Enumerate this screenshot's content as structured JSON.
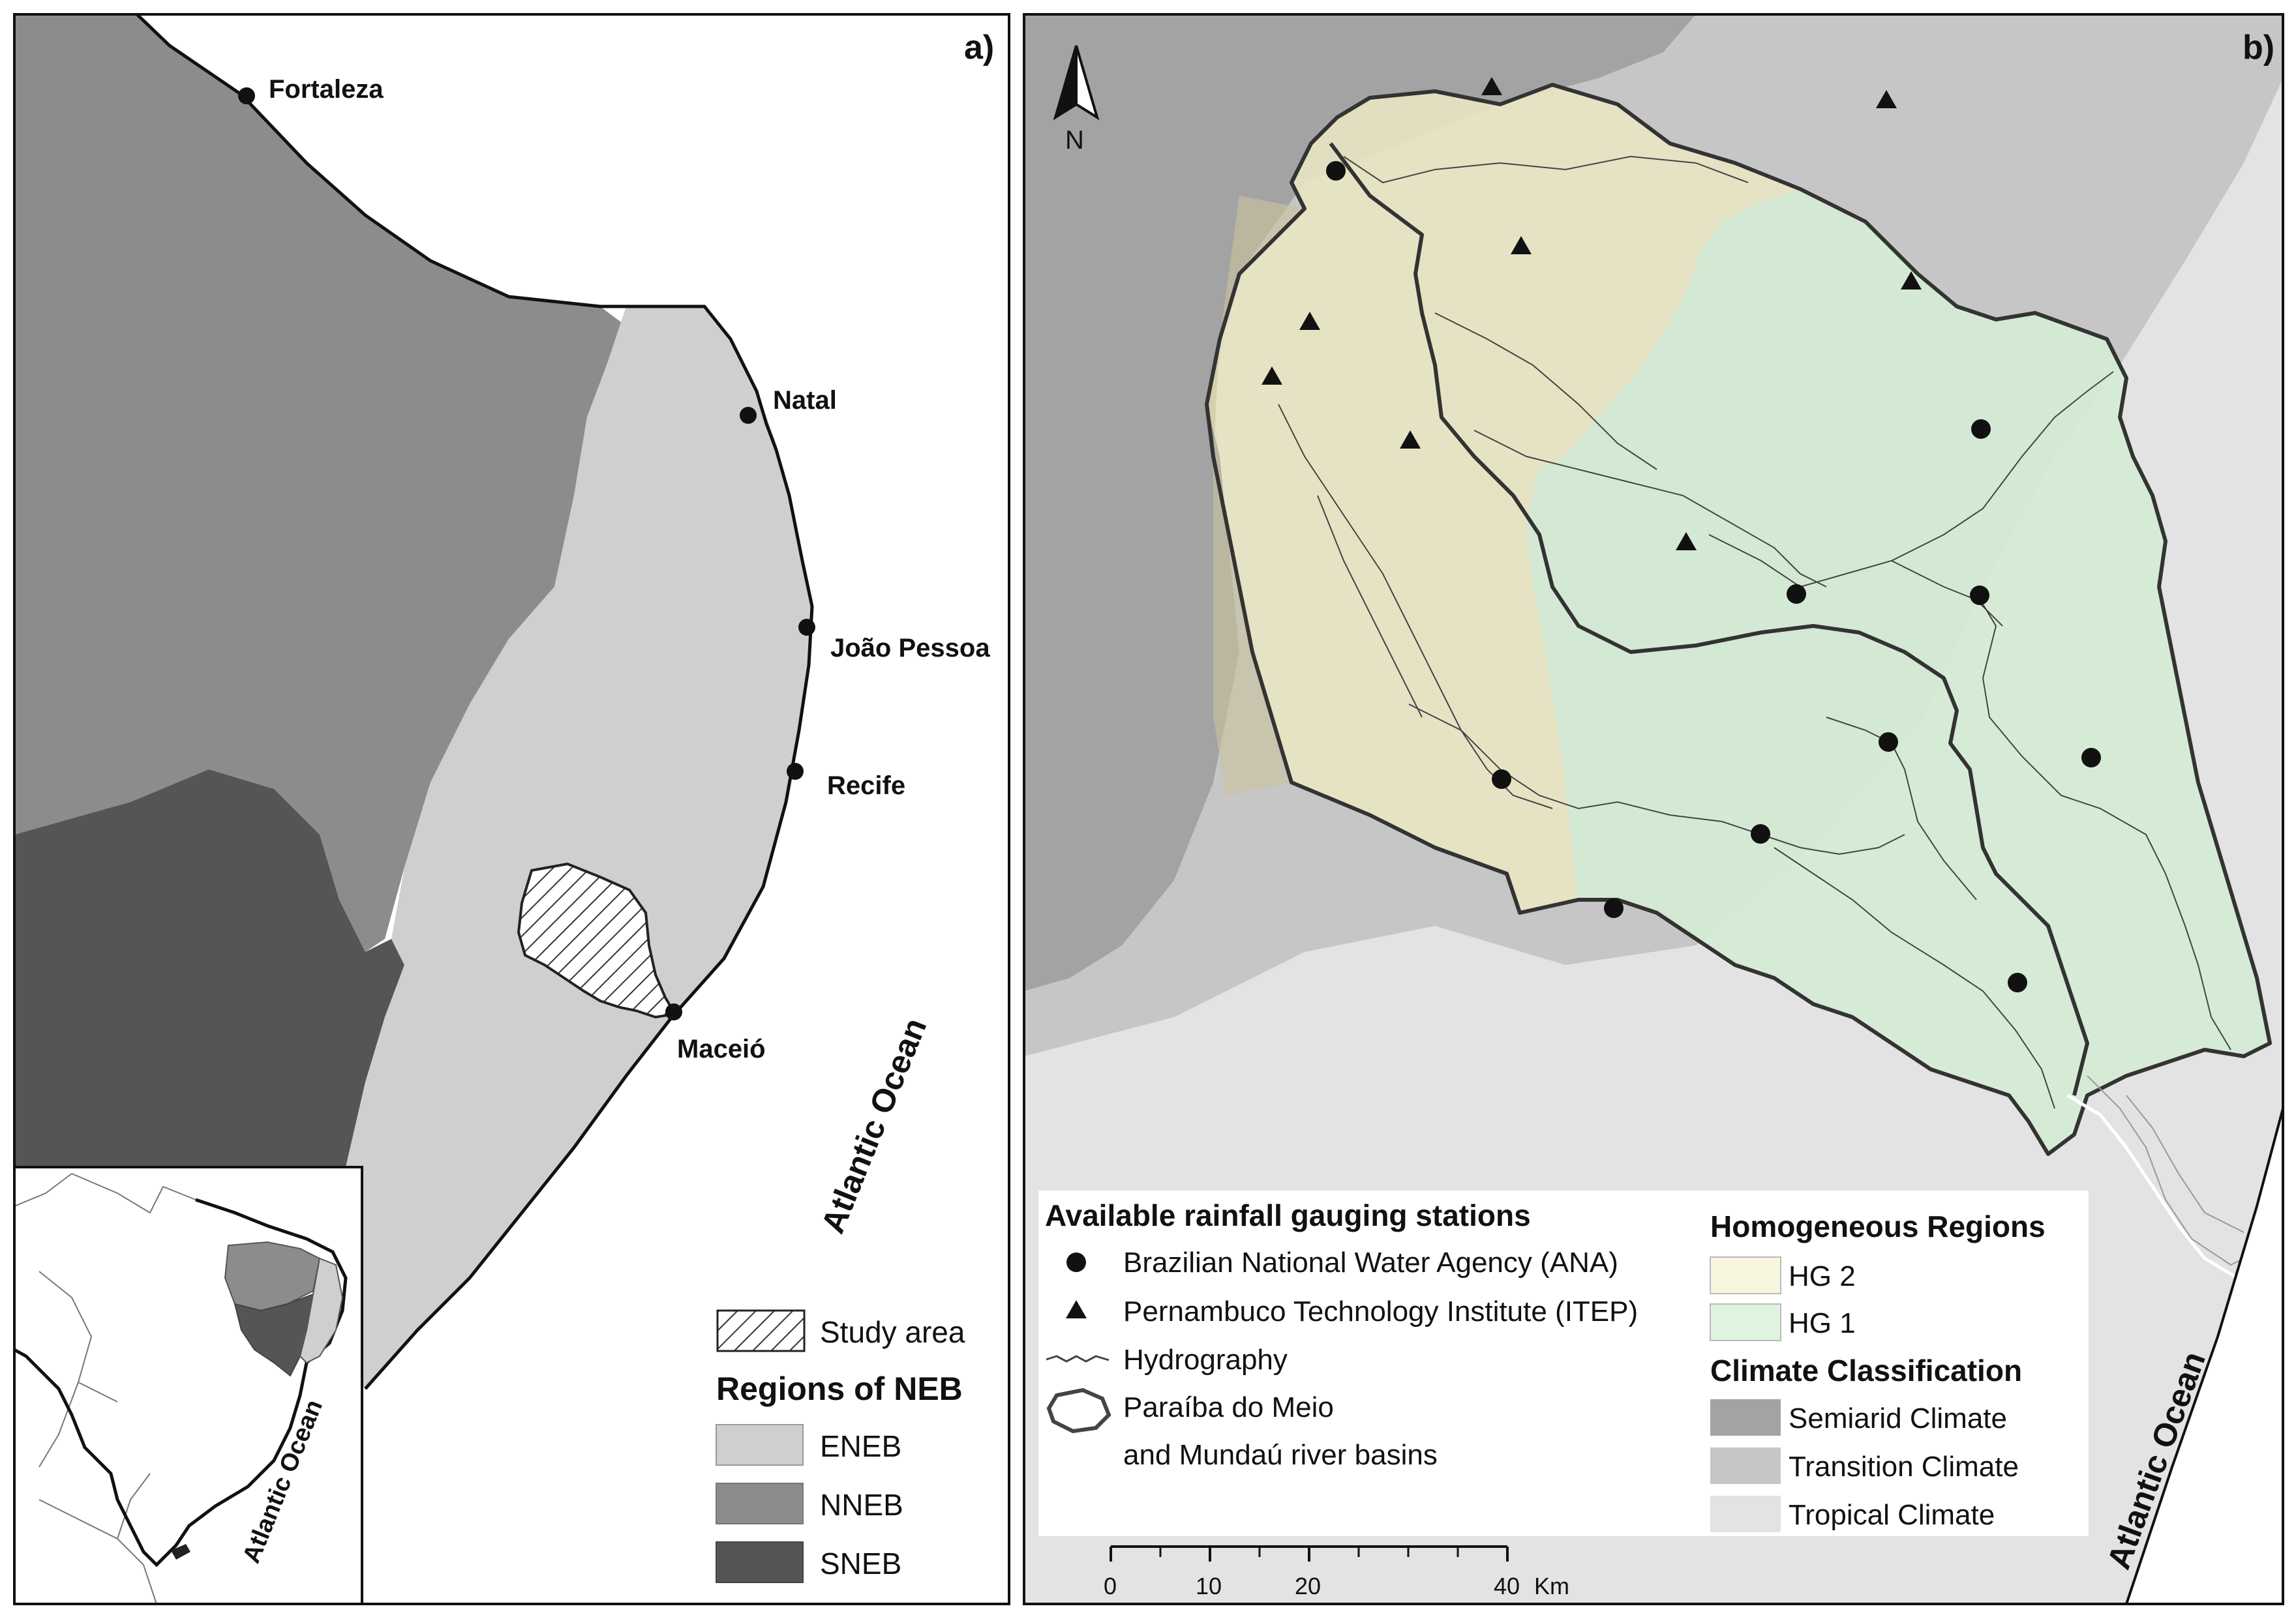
{
  "panel_a": {
    "label": "a)",
    "cities": [
      "Fortaleza",
      "Natal",
      "João Pessoa",
      "Recife",
      "Maceió"
    ],
    "ocean_label": "Atlantic Ocean",
    "inset_ocean_label": "Atlantic Ocean",
    "legend": {
      "study_area": "Study area",
      "regions_title": "Regions of NEB",
      "regions": [
        {
          "name": "ENEB",
          "color": "#cfcfcf"
        },
        {
          "name": "NNEB",
          "color": "#8c8c8c"
        },
        {
          "name": "SNEB",
          "color": "#555555"
        }
      ]
    }
  },
  "panel_b": {
    "label": "b)",
    "north_label": "N",
    "ocean_label": "Atlantic Ocean",
    "stations_legend": {
      "title": "Available rainfall gauging stations",
      "ana": "Brazilian National Water Agency (ANA)",
      "itep": "Pernambuco Technology Institute (ITEP)",
      "hydro": "Hydrography",
      "basins_line1": "Paraíba do Meio",
      "basins_line2": "and Mundaú river basins"
    },
    "homogeneous_legend": {
      "title": "Homogeneous Regions",
      "items": [
        {
          "name": "HG 2",
          "color": "#f8f6de"
        },
        {
          "name": "HG 1",
          "color": "#dff3df"
        }
      ]
    },
    "climate_legend": {
      "title": "Climate Classification",
      "items": [
        {
          "name": "Semiarid Climate",
          "color": "#a3a3a3"
        },
        {
          "name": "Transition Climate",
          "color": "#c6c6c6"
        },
        {
          "name": "Tropical Climate",
          "color": "#e3e3e3"
        }
      ]
    },
    "scale_bar": {
      "ticks": [
        "0",
        "10",
        "20",
        "40"
      ],
      "unit": "Km"
    }
  }
}
